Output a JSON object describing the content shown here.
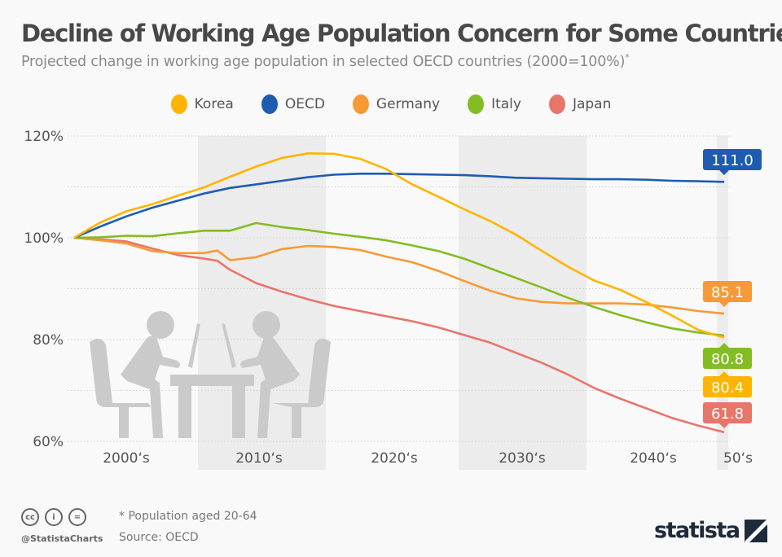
{
  "header": {
    "title": "Decline of Working Age Population Concern for Some Countries",
    "subtitle": "Projected change in working age population in selected OECD countries (2000=100%)",
    "subtitle_mark": "*"
  },
  "chart_data": {
    "type": "line",
    "title": "Decline of Working Age Population Concern for Some Countries",
    "subtitle": "Projected change in working age population in selected OECD countries (2000=100%)*",
    "xlabel": "",
    "ylabel": "",
    "xlim": [
      2000,
      2050
    ],
    "ylim": [
      60,
      120
    ],
    "yticks": [
      60,
      80,
      100,
      120
    ],
    "ytick_labels": [
      "60%",
      "80%",
      "100%",
      "120%"
    ],
    "xtick_labels": [
      "2000‘s",
      "2010‘s",
      "2020‘s",
      "2030‘s",
      "2040‘s",
      "50‘s"
    ],
    "grid": true,
    "legend_position": "top-center",
    "series": [
      {
        "name": "Korea",
        "color": "#ffb400",
        "end_label": "80.4",
        "x": [
          2000,
          2002,
          2004,
          2006,
          2008,
          2010,
          2012,
          2014,
          2016,
          2018,
          2020,
          2022,
          2024,
          2026,
          2028,
          2030,
          2032,
          2034,
          2036,
          2038,
          2040,
          2042,
          2044,
          2046,
          2048,
          2050
        ],
        "y": [
          100,
          103,
          105.2,
          106.6,
          108.3,
          109.9,
          112,
          114,
          115.7,
          116.6,
          116.5,
          115.5,
          113.5,
          110.5,
          108.1,
          105.6,
          103.3,
          100.6,
          97.4,
          94.3,
          91.6,
          89.8,
          87.4,
          84.7,
          81.9,
          80.4
        ]
      },
      {
        "name": "OECD",
        "color": "#1f5cb1",
        "end_label": "111.0",
        "x": [
          2000,
          2002,
          2004,
          2006,
          2008,
          2010,
          2012,
          2014,
          2016,
          2018,
          2020,
          2022,
          2024,
          2026,
          2028,
          2030,
          2032,
          2034,
          2036,
          2038,
          2040,
          2042,
          2044,
          2046,
          2048,
          2050
        ],
        "y": [
          100,
          102.2,
          104.2,
          105.9,
          107.3,
          108.7,
          109.8,
          110.5,
          111.2,
          111.9,
          112.4,
          112.6,
          112.6,
          112.5,
          112.4,
          112.3,
          112.1,
          111.8,
          111.7,
          111.6,
          111.5,
          111.5,
          111.4,
          111.2,
          111.1,
          111.0
        ]
      },
      {
        "name": "Germany",
        "color": "#f79a35",
        "end_label": "85.1",
        "x": [
          2000,
          2002,
          2004,
          2006,
          2008,
          2010,
          2011,
          2012,
          2014,
          2016,
          2018,
          2020,
          2022,
          2024,
          2026,
          2028,
          2030,
          2032,
          2034,
          2036,
          2038,
          2040,
          2042,
          2044,
          2046,
          2048,
          2050
        ],
        "y": [
          100,
          99.5,
          98.9,
          97.4,
          97.0,
          97.0,
          97.5,
          95.6,
          96.2,
          97.8,
          98.4,
          98.2,
          97.6,
          96.3,
          95.2,
          93.5,
          91.5,
          89.6,
          88.1,
          87.4,
          87.1,
          87.1,
          87.1,
          86.9,
          86.3,
          85.6,
          85.1
        ]
      },
      {
        "name": "Italy",
        "color": "#83bc23",
        "end_label": "80.8",
        "x": [
          2000,
          2002,
          2004,
          2006,
          2008,
          2010,
          2012,
          2014,
          2016,
          2018,
          2020,
          2022,
          2024,
          2026,
          2028,
          2030,
          2032,
          2034,
          2036,
          2038,
          2040,
          2042,
          2044,
          2046,
          2048,
          2050
        ],
        "y": [
          100,
          100.1,
          100.4,
          100.3,
          100.9,
          101.4,
          101.4,
          102.9,
          102.1,
          101.5,
          100.8,
          100.2,
          99.5,
          98.5,
          97.4,
          95.9,
          94.0,
          92.1,
          90.2,
          88.2,
          86.4,
          84.8,
          83.4,
          82.2,
          81.4,
          80.8
        ]
      },
      {
        "name": "Japan",
        "color": "#e8756a",
        "end_label": "61.8",
        "x": [
          2000,
          2002,
          2004,
          2006,
          2008,
          2010,
          2011,
          2012,
          2014,
          2016,
          2018,
          2020,
          2022,
          2024,
          2026,
          2028,
          2030,
          2032,
          2034,
          2036,
          2038,
          2040,
          2042,
          2044,
          2046,
          2048,
          2050
        ],
        "y": [
          100,
          99.7,
          99.3,
          97.9,
          96.6,
          95.9,
          95.5,
          93.7,
          91.1,
          89.4,
          87.9,
          86.6,
          85.6,
          84.6,
          83.6,
          82.4,
          80.9,
          79.4,
          77.4,
          75.4,
          73.1,
          70.5,
          68.4,
          66.5,
          64.6,
          63.1,
          61.8
        ]
      }
    ]
  },
  "footer": {
    "note": "* Population aged 20-64",
    "source": "Source: OECD",
    "handle": "@StatistaCharts",
    "license_icons": [
      "cc",
      "by",
      "nd"
    ],
    "license_labels": [
      "cc",
      "i",
      "="
    ],
    "logo_text": "statista"
  }
}
